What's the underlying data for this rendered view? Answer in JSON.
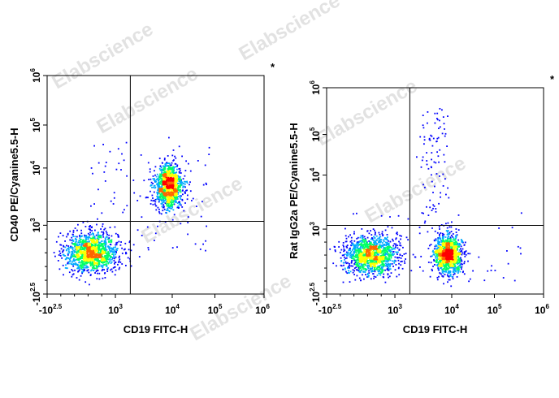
{
  "chart_data": [
    {
      "type": "scatter",
      "subtype": "flow-cytometry-density-dot-plot",
      "xlabel": "CD19 FITC-H",
      "ylabel": "CD40 PE/Cyanine5.5-H",
      "scale": "biexponential",
      "x_ticks": [
        "-10^2.5",
        "10^3",
        "10^4",
        "10^5",
        "10^6"
      ],
      "y_ticks": [
        "-10^2.5",
        "10^3",
        "10^4",
        "10^5",
        "10^6"
      ],
      "xlim": [
        "-10^2.5",
        "10^6"
      ],
      "ylim": [
        "-10^2.5",
        "10^6"
      ],
      "gate": {
        "x": 2000,
        "y": 1200
      },
      "corner_mark": "*",
      "populations": [
        {
          "name": "CD19- CD40-",
          "center_x": 300,
          "center_y": 200,
          "weight": 0.52
        },
        {
          "name": "CD19+ CD40+",
          "center_x": 12000,
          "center_y": 6000,
          "weight": 0.44
        },
        {
          "name": "scattered",
          "weight": 0.04
        }
      ],
      "colormap": [
        "#0000ff",
        "#00aaff",
        "#00ff66",
        "#ffff00",
        "#ff6600",
        "#ff0000"
      ]
    },
    {
      "type": "scatter",
      "subtype": "flow-cytometry-density-dot-plot",
      "xlabel": "CD19 FITC-H",
      "ylabel": "Rat IgG2a PE/Cyanine5.5-H",
      "scale": "biexponential",
      "x_ticks": [
        "-10^2.5",
        "10^3",
        "10^4",
        "10^5",
        "10^6"
      ],
      "y_ticks": [
        "-10^2.5",
        "10^3",
        "10^4",
        "10^5",
        "10^6"
      ],
      "xlim": [
        "-10^2.5",
        "10^6"
      ],
      "ylim": [
        "-10^2.5",
        "10^6"
      ],
      "gate": {
        "x": 2000,
        "y": 1200
      },
      "corner_mark": "*",
      "populations": [
        {
          "name": "CD19- isotype",
          "center_x": 300,
          "center_y": 200,
          "weight": 0.5
        },
        {
          "name": "CD19+ isotype",
          "center_x": 12000,
          "center_y": 200,
          "weight": 0.44
        },
        {
          "name": "scattered",
          "weight": 0.06
        }
      ],
      "colormap": [
        "#0000ff",
        "#00aaff",
        "#00ff66",
        "#ffff00",
        "#ff6600",
        "#ff0000"
      ]
    }
  ],
  "watermark": "Elabscience"
}
